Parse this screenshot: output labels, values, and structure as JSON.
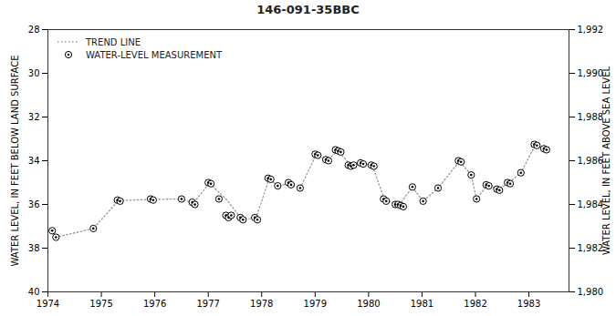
{
  "chart_data": {
    "type": "line",
    "title": "146-091-35BBC",
    "ylabel": "WATER LEVEL, IN FEET BELOW LAND SURFACE",
    "y2label": "WATER LEVEL, IN FEET ABOVE SEA LEVEL",
    "xlim": [
      1974.0,
      1983.75
    ],
    "xticks": [
      1974,
      1975,
      1976,
      1977,
      1978,
      1979,
      1980,
      1981,
      1982,
      1983
    ],
    "ylim": [
      40,
      28
    ],
    "yticks": [
      28,
      30,
      32,
      34,
      36,
      38,
      40
    ],
    "y2lim": [
      1980,
      1992
    ],
    "y2ticks": [
      {
        "value": 1980,
        "label": "1,980"
      },
      {
        "value": 1982,
        "label": "1,982"
      },
      {
        "value": 1984,
        "label": "1,984"
      },
      {
        "value": 1986,
        "label": "1,986"
      },
      {
        "value": 1988,
        "label": "1,988"
      },
      {
        "value": 1990,
        "label": "1,990"
      },
      {
        "value": 1992,
        "label": "1,992"
      }
    ],
    "grid": false,
    "legend": "upper left",
    "series": [
      {
        "name": "TREND LINE",
        "type": "line",
        "color": "#999999",
        "line_style": "dotted",
        "x": [
          1974.08,
          1974.15,
          1974.85,
          1975.32,
          1975.95,
          1976.5,
          1976.72,
          1977.02,
          1977.35,
          1977.62,
          1977.89,
          1978.14,
          1978.3,
          1978.52,
          1978.72,
          1979.02,
          1979.22,
          1979.43,
          1979.67,
          1979.87,
          1980.07,
          1980.3,
          1980.57,
          1980.82,
          1981.02,
          1981.3,
          1981.7,
          1981.92,
          1982.02,
          1982.22,
          1982.42,
          1982.62,
          1982.85,
          1983.12,
          1983.3
        ],
        "values": [
          37.2,
          37.5,
          37.1,
          35.82,
          35.77,
          35.75,
          35.95,
          35.02,
          35.8,
          36.65,
          36.65,
          34.82,
          35.15,
          35.05,
          35.25,
          33.72,
          33.97,
          33.55,
          34.22,
          34.12,
          34.22,
          35.8,
          36.02,
          35.22,
          35.85,
          35.25,
          34.02,
          34.65,
          35.75,
          35.12,
          35.32,
          35.02,
          34.55,
          33.27,
          33.47
        ]
      },
      {
        "name": "WATER-LEVEL MEASUREMENT",
        "type": "scatter",
        "color": "#000000",
        "marker": "circle",
        "x": [
          1974.08,
          1974.15,
          1974.85,
          1975.3,
          1975.35,
          1975.92,
          1975.97,
          1976.5,
          1976.7,
          1976.75,
          1977.0,
          1977.05,
          1977.2,
          1977.33,
          1977.38,
          1977.43,
          1977.6,
          1977.65,
          1977.87,
          1977.92,
          1978.12,
          1978.17,
          1978.3,
          1978.5,
          1978.55,
          1978.72,
          1979.0,
          1979.05,
          1979.2,
          1979.25,
          1979.38,
          1979.43,
          1979.48,
          1979.62,
          1979.67,
          1979.72,
          1979.85,
          1979.9,
          1980.05,
          1980.1,
          1980.28,
          1980.33,
          1980.5,
          1980.55,
          1980.6,
          1980.65,
          1980.82,
          1981.02,
          1981.3,
          1981.68,
          1981.73,
          1981.92,
          1982.02,
          1982.2,
          1982.25,
          1982.4,
          1982.45,
          1982.6,
          1982.65,
          1982.85,
          1983.1,
          1983.15,
          1983.28,
          1983.33
        ],
        "values": [
          37.2,
          37.5,
          37.1,
          35.8,
          35.85,
          35.75,
          35.8,
          35.75,
          35.9,
          36.0,
          35.0,
          35.05,
          35.75,
          36.5,
          36.6,
          36.5,
          36.6,
          36.7,
          36.6,
          36.7,
          34.8,
          34.85,
          35.15,
          35.0,
          35.1,
          35.25,
          33.7,
          33.75,
          33.95,
          34.0,
          33.5,
          33.55,
          33.6,
          34.2,
          34.25,
          34.2,
          34.1,
          34.15,
          34.2,
          34.25,
          35.75,
          35.85,
          36.0,
          36.0,
          36.05,
          36.1,
          35.2,
          35.85,
          35.25,
          34.0,
          34.05,
          34.65,
          35.75,
          35.1,
          35.15,
          35.3,
          35.35,
          35.0,
          35.05,
          34.55,
          33.25,
          33.3,
          33.45,
          33.5
        ]
      }
    ]
  }
}
